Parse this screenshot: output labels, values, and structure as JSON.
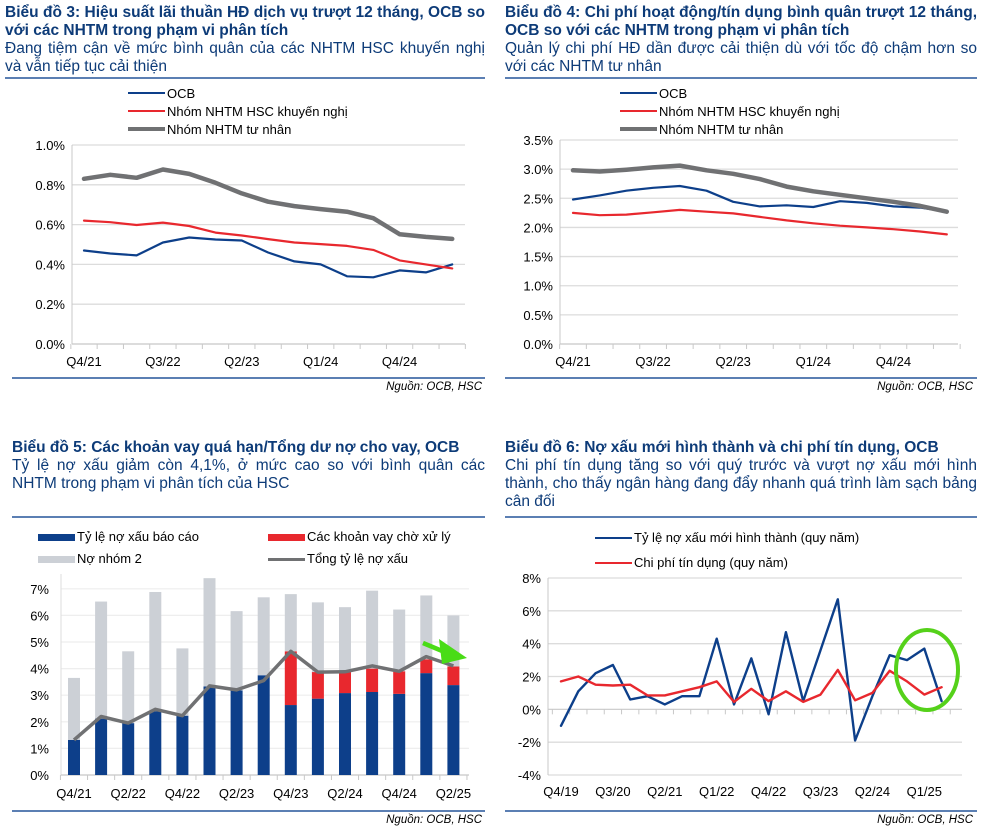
{
  "chart_data": [
    {
      "id": "c3",
      "type": "line",
      "title": "Biểu đồ 3: Hiệu suất lãi thuần HĐ dịch vụ trượt 12 tháng, OCB so với các NHTM trong phạm vi phân tích",
      "subtitle": "Đang tiệm cận về mức bình quân của các NHTM HSC khuyến nghị và vẫn tiếp tục cải thiện",
      "source": "Nguồn: OCB, HSC",
      "x": [
        "Q4/21",
        "Q1/22",
        "Q2/22",
        "Q3/22",
        "Q4/22",
        "Q1/23",
        "Q2/23",
        "Q3/23",
        "Q4/23",
        "Q1/24",
        "Q2/24",
        "Q3/24",
        "Q4/24",
        "Q1/25",
        "Q2/25"
      ],
      "xtick_labels": [
        "Q4/21",
        "Q3/22",
        "Q2/23",
        "Q1/24",
        "Q4/24"
      ],
      "yticks": [
        "0.0%",
        "0.2%",
        "0.4%",
        "0.6%",
        "0.8%",
        "1.0%"
      ],
      "ylim": [
        0,
        1.0
      ],
      "xlabel": "",
      "ylabel": "",
      "legend": "top-center",
      "series": [
        {
          "name": "OCB",
          "color": "#0d3f8a",
          "width": 2.2,
          "values": [
            0.47,
            0.455,
            0.445,
            0.51,
            0.535,
            0.525,
            0.52,
            0.46,
            0.415,
            0.4,
            0.34,
            0.335,
            0.37,
            0.36,
            0.4
          ]
        },
        {
          "name": "Nhóm NHTM HSC khuyến nghị",
          "color": "#e8282e",
          "width": 2.2,
          "values": [
            0.62,
            0.612,
            0.598,
            0.61,
            0.593,
            0.56,
            0.545,
            0.527,
            0.51,
            0.502,
            0.493,
            0.473,
            0.42,
            0.4,
            0.38
          ]
        },
        {
          "name": "Nhóm NHTM tư nhân",
          "color": "#707173",
          "width": 4.5,
          "values": [
            0.83,
            0.85,
            0.835,
            0.877,
            0.855,
            0.81,
            0.757,
            0.715,
            0.693,
            0.678,
            0.665,
            0.632,
            0.552,
            0.538,
            0.528
          ]
        }
      ]
    },
    {
      "id": "c4",
      "type": "line",
      "title": "Biểu đồ 4: Chi phí hoạt động/tín dụng bình quân trượt 12 tháng, OCB so với các NHTM trong phạm vi phân tích",
      "subtitle": "Quản lý chi phí HĐ dần được cải thiện dù với tốc độ chậm hơn so với các NHTM tư nhân",
      "source": "Nguồn: OCB, HSC",
      "x": [
        "Q4/21",
        "Q1/22",
        "Q2/22",
        "Q3/22",
        "Q4/22",
        "Q1/23",
        "Q2/23",
        "Q3/23",
        "Q4/23",
        "Q1/24",
        "Q2/24",
        "Q3/24",
        "Q4/24",
        "Q1/25",
        "Q2/25"
      ],
      "xtick_labels": [
        "Q4/21",
        "Q3/22",
        "Q2/23",
        "Q1/24",
        "Q4/24"
      ],
      "yticks": [
        "0.0%",
        "0.5%",
        "1.0%",
        "1.5%",
        "2.0%",
        "2.5%",
        "3.0%",
        "3.5%"
      ],
      "ylim": [
        0,
        3.5
      ],
      "xlabel": "",
      "ylabel": "",
      "legend": "top-center",
      "series": [
        {
          "name": "OCB",
          "color": "#0d3f8a",
          "width": 2.2,
          "values": [
            2.48,
            2.55,
            2.63,
            2.68,
            2.71,
            2.63,
            2.44,
            2.36,
            2.38,
            2.35,
            2.45,
            2.42,
            2.36,
            2.34,
            2.27
          ]
        },
        {
          "name": "Nhóm NHTM HSC khuyến nghị",
          "color": "#e8282e",
          "width": 2.2,
          "values": [
            2.25,
            2.21,
            2.22,
            2.26,
            2.3,
            2.27,
            2.24,
            2.18,
            2.12,
            2.07,
            2.03,
            2.0,
            1.97,
            1.93,
            1.88
          ]
        },
        {
          "name": "Nhóm NHTM tư nhân",
          "color": "#707173",
          "width": 4.5,
          "values": [
            2.98,
            2.96,
            2.99,
            3.03,
            3.06,
            2.98,
            2.92,
            2.83,
            2.7,
            2.62,
            2.56,
            2.5,
            2.44,
            2.37,
            2.27
          ]
        }
      ]
    },
    {
      "id": "c5",
      "type": "bar",
      "stacked": true,
      "title": "Biểu đồ 5: Các khoản vay quá hạn/Tổng dư nợ cho vay, OCB",
      "subtitle": "Tỷ lệ nợ xấu giảm còn 4,1%, ở mức cao so với bình quân các NHTM trong phạm vi phân tích của HSC",
      "source": "Nguồn: OCB, HSC",
      "categories": [
        "Q4/21",
        "Q1/22",
        "Q2/22",
        "Q3/22",
        "Q4/22",
        "Q1/23",
        "Q2/23",
        "Q3/23",
        "Q4/23",
        "Q1/24",
        "Q2/24",
        "Q3/24",
        "Q4/24",
        "Q1/25",
        "Q2/25"
      ],
      "xtick_labels": [
        "Q4/21",
        "Q2/22",
        "Q4/22",
        "Q2/23",
        "Q4/23",
        "Q2/24",
        "Q4/24",
        "Q2/25"
      ],
      "yticks": [
        "0%",
        "1%",
        "2%",
        "3%",
        "4%",
        "5%",
        "6%",
        "7%"
      ],
      "ylim": [
        0,
        7.5
      ],
      "xlabel": "",
      "ylabel": "",
      "legend": "top",
      "series": [
        {
          "name": "Tỷ lệ nợ xấu báo cáo",
          "color": "#0d3f8a",
          "kind": "bar",
          "values": [
            1.32,
            2.12,
            1.95,
            2.4,
            2.23,
            3.33,
            3.18,
            3.75,
            2.63,
            2.87,
            3.08,
            3.12,
            3.05,
            3.83,
            3.38
          ]
        },
        {
          "name": "Các khoản vay chờ xử lý",
          "color": "#e8282e",
          "kind": "bar",
          "values": [
            0,
            0,
            0,
            0,
            0,
            0,
            0,
            0,
            2.02,
            1.0,
            0.8,
            0.88,
            0.85,
            0.52,
            0.7
          ]
        },
        {
          "name": "Nợ nhóm 2",
          "color": "#ccd0d6",
          "kind": "bar",
          "values": [
            2.33,
            4.4,
            2.7,
            4.48,
            2.53,
            4.07,
            2.98,
            2.93,
            2.15,
            2.62,
            2.43,
            2.93,
            2.32,
            2.4,
            1.92
          ]
        },
        {
          "name": "Tổng tỷ lệ nợ xấu",
          "color": "#707173",
          "kind": "line",
          "values": [
            1.32,
            2.2,
            1.95,
            2.47,
            2.23,
            3.35,
            3.2,
            3.55,
            4.65,
            3.87,
            3.88,
            4.1,
            3.9,
            4.45,
            4.1
          ]
        }
      ],
      "annotation": "green arrow pointing down-right at Q2/25"
    },
    {
      "id": "c6",
      "type": "line",
      "title": "Biểu đồ 6: Nợ xấu mới hình thành và chi phí tín dụng, OCB",
      "subtitle": "Chi phí tín dụng tăng so với quý trước và vượt nợ xấu mới hình thành, cho thấy ngân hàng đang đẩy nhanh quá trình làm sạch bảng cân đối",
      "source": "Nguồn: OCB, HSC",
      "x": [
        "Q4/19",
        "Q1/20",
        "Q2/20",
        "Q3/20",
        "Q4/20",
        "Q1/21",
        "Q2/21",
        "Q3/21",
        "Q4/21",
        "Q1/22",
        "Q2/22",
        "Q3/22",
        "Q4/22",
        "Q1/23",
        "Q2/23",
        "Q3/23",
        "Q4/23",
        "Q1/24",
        "Q2/24",
        "Q3/24",
        "Q4/24",
        "Q1/25",
        "Q2/25"
      ],
      "xtick_labels": [
        "Q4/19",
        "Q3/20",
        "Q2/21",
        "Q1/22",
        "Q4/22",
        "Q3/23",
        "Q2/24",
        "Q1/25"
      ],
      "yticks": [
        "-4%",
        "-2%",
        "0%",
        "2%",
        "4%",
        "6%",
        "8%"
      ],
      "ylim": [
        -4,
        8
      ],
      "xlabel": "",
      "ylabel": "",
      "legend": "top-center",
      "series": [
        {
          "name": "Tỷ lệ nợ xấu mới hình thành (quy năm)",
          "color": "#0d3f8a",
          "width": 2.4,
          "values": [
            -1.0,
            1.1,
            2.2,
            2.7,
            0.6,
            0.8,
            0.3,
            0.8,
            0.8,
            4.3,
            0.3,
            3.1,
            -0.3,
            4.7,
            0.5,
            3.6,
            6.7,
            -1.9,
            0.8,
            3.3,
            3.0,
            3.7,
            0.5
          ]
        },
        {
          "name": "Chi phí tín dụng (quy năm)",
          "color": "#e8282e",
          "width": 2.4,
          "values": [
            1.7,
            2.0,
            1.5,
            1.45,
            1.5,
            0.85,
            0.85,
            1.1,
            1.35,
            1.7,
            0.45,
            1.25,
            0.5,
            1.1,
            0.45,
            0.9,
            2.4,
            0.55,
            1.0,
            2.35,
            1.7,
            0.9,
            1.35
          ]
        }
      ],
      "annotation": "green ellipse highlighting Q4/24–Q2/25"
    }
  ]
}
